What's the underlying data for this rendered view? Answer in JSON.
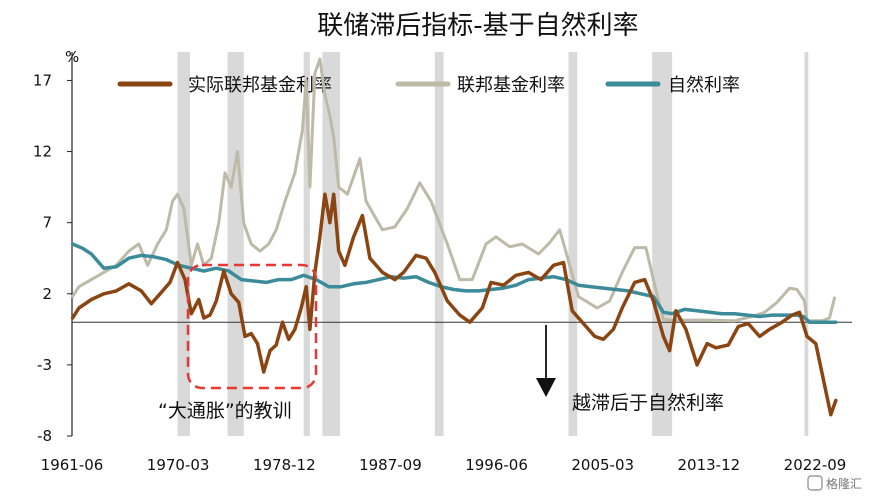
{
  "chart_data": {
    "type": "line",
    "title": "联储滞后指标-基于自然利率",
    "y_unit": "%",
    "ylim": [
      -8,
      19
    ],
    "yticks": [
      -8,
      -3,
      2,
      7,
      12,
      17
    ],
    "x_tick_labels": [
      "1961-06",
      "1970-03",
      "1978-12",
      "1987-09",
      "1996-06",
      "2005-03",
      "2013-12",
      "2022-09"
    ],
    "xlim": [
      1961.45,
      2023.9
    ],
    "recessions": [
      [
        1969.9,
        1970.9
      ],
      [
        1973.9,
        1975.2
      ],
      [
        1980.0,
        1980.5
      ],
      [
        1981.5,
        1982.9
      ],
      [
        1990.5,
        1991.2
      ],
      [
        2001.2,
        2001.9
      ],
      [
        2007.9,
        2009.5
      ],
      [
        2020.1,
        2020.4
      ]
    ],
    "legend_position": "top",
    "grid": false,
    "colors": {
      "real": "#8B4513",
      "ffr": "#BDBAA8",
      "natural": "#3B8B9A",
      "recession": "#D9D9D9",
      "box": "#E53935"
    },
    "series": [
      {
        "name": "实际联邦基金利率",
        "key": "real",
        "points": [
          [
            1961.5,
            0.3
          ],
          [
            1962.0,
            1.0
          ],
          [
            1963.0,
            1.6
          ],
          [
            1964.0,
            2.0
          ],
          [
            1965.0,
            2.2
          ],
          [
            1966.0,
            2.7
          ],
          [
            1967.0,
            2.2
          ],
          [
            1967.8,
            1.3
          ],
          [
            1968.5,
            2.0
          ],
          [
            1969.3,
            2.8
          ],
          [
            1969.9,
            4.2
          ],
          [
            1970.5,
            3.0
          ],
          [
            1971.0,
            0.6
          ],
          [
            1971.6,
            1.6
          ],
          [
            1972.0,
            0.3
          ],
          [
            1972.5,
            0.5
          ],
          [
            1973.0,
            1.5
          ],
          [
            1973.6,
            3.6
          ],
          [
            1974.2,
            2.0
          ],
          [
            1974.8,
            1.4
          ],
          [
            1975.3,
            -1.0
          ],
          [
            1975.8,
            -0.8
          ],
          [
            1976.3,
            -1.5
          ],
          [
            1976.8,
            -3.5
          ],
          [
            1977.3,
            -2.0
          ],
          [
            1977.8,
            -1.6
          ],
          [
            1978.3,
            0.0
          ],
          [
            1978.8,
            -1.2
          ],
          [
            1979.3,
            -0.5
          ],
          [
            1979.8,
            1.0
          ],
          [
            1980.2,
            2.5
          ],
          [
            1980.5,
            -0.5
          ],
          [
            1980.9,
            3.5
          ],
          [
            1981.3,
            6.0
          ],
          [
            1981.7,
            9.0
          ],
          [
            1982.1,
            7.0
          ],
          [
            1982.4,
            9.0
          ],
          [
            1982.8,
            5.0
          ],
          [
            1983.3,
            4.0
          ],
          [
            1984.0,
            6.0
          ],
          [
            1984.7,
            7.5
          ],
          [
            1985.3,
            4.5
          ],
          [
            1986.3,
            3.5
          ],
          [
            1987.3,
            3.0
          ],
          [
            1988.0,
            3.5
          ],
          [
            1989.0,
            4.7
          ],
          [
            1989.8,
            4.5
          ],
          [
            1990.5,
            3.5
          ],
          [
            1991.5,
            1.5
          ],
          [
            1992.5,
            0.5
          ],
          [
            1993.3,
            0.0
          ],
          [
            1994.3,
            1.0
          ],
          [
            1995.0,
            2.8
          ],
          [
            1996.0,
            2.6
          ],
          [
            1997.0,
            3.3
          ],
          [
            1998.0,
            3.5
          ],
          [
            1999.0,
            3.0
          ],
          [
            2000.0,
            4.0
          ],
          [
            2000.8,
            4.2
          ],
          [
            2001.5,
            0.8
          ],
          [
            2002.3,
            0.0
          ],
          [
            2003.3,
            -1.0
          ],
          [
            2004.0,
            -1.2
          ],
          [
            2004.8,
            -0.5
          ],
          [
            2005.5,
            1.0
          ],
          [
            2006.5,
            2.8
          ],
          [
            2007.3,
            3.0
          ],
          [
            2008.0,
            1.5
          ],
          [
            2008.8,
            -1.0
          ],
          [
            2009.3,
            -2.0
          ],
          [
            2009.8,
            0.8
          ],
          [
            2010.6,
            -0.5
          ],
          [
            2011.5,
            -3.0
          ],
          [
            2012.3,
            -1.5
          ],
          [
            2013.0,
            -1.8
          ],
          [
            2014.0,
            -1.6
          ],
          [
            2014.8,
            -0.3
          ],
          [
            2015.6,
            -0.1
          ],
          [
            2016.5,
            -1.0
          ],
          [
            2017.3,
            -0.5
          ],
          [
            2018.3,
            0.0
          ],
          [
            2019.1,
            0.5
          ],
          [
            2019.7,
            0.7
          ],
          [
            2020.3,
            -1.0
          ],
          [
            2021.0,
            -1.5
          ],
          [
            2021.6,
            -4.0
          ],
          [
            2022.2,
            -6.5
          ],
          [
            2022.6,
            -5.5
          ]
        ]
      },
      {
        "name": "联邦基金利率",
        "key": "ffr",
        "points": [
          [
            1961.5,
            1.8
          ],
          [
            1962.0,
            2.5
          ],
          [
            1963.0,
            3.0
          ],
          [
            1964.0,
            3.5
          ],
          [
            1965.0,
            4.0
          ],
          [
            1966.0,
            5.0
          ],
          [
            1966.8,
            5.5
          ],
          [
            1967.5,
            4.0
          ],
          [
            1968.3,
            5.5
          ],
          [
            1969.0,
            6.5
          ],
          [
            1969.5,
            8.5
          ],
          [
            1969.9,
            9.0
          ],
          [
            1970.4,
            8.0
          ],
          [
            1971.0,
            4.0
          ],
          [
            1971.5,
            5.5
          ],
          [
            1972.0,
            4.0
          ],
          [
            1972.6,
            4.5
          ],
          [
            1973.2,
            7.0
          ],
          [
            1973.7,
            10.5
          ],
          [
            1974.2,
            9.5
          ],
          [
            1974.7,
            12.0
          ],
          [
            1975.2,
            7.0
          ],
          [
            1975.8,
            5.5
          ],
          [
            1976.5,
            5.0
          ],
          [
            1977.2,
            5.5
          ],
          [
            1977.8,
            6.5
          ],
          [
            1978.5,
            8.5
          ],
          [
            1979.3,
            10.5
          ],
          [
            1979.9,
            13.5
          ],
          [
            1980.2,
            17.0
          ],
          [
            1980.5,
            9.5
          ],
          [
            1980.9,
            17.5
          ],
          [
            1981.3,
            18.5
          ],
          [
            1981.7,
            16.0
          ],
          [
            1982.1,
            14.5
          ],
          [
            1982.4,
            13.0
          ],
          [
            1982.8,
            9.5
          ],
          [
            1983.5,
            9.0
          ],
          [
            1984.5,
            11.5
          ],
          [
            1985.0,
            8.5
          ],
          [
            1986.3,
            6.5
          ],
          [
            1987.3,
            6.7
          ],
          [
            1988.3,
            8.0
          ],
          [
            1989.3,
            9.8
          ],
          [
            1990.2,
            8.5
          ],
          [
            1991.5,
            5.5
          ],
          [
            1992.5,
            3.0
          ],
          [
            1993.5,
            3.0
          ],
          [
            1994.6,
            5.5
          ],
          [
            1995.4,
            6.0
          ],
          [
            1996.5,
            5.3
          ],
          [
            1997.5,
            5.5
          ],
          [
            1998.8,
            4.8
          ],
          [
            1999.6,
            5.5
          ],
          [
            2000.5,
            6.5
          ],
          [
            2001.3,
            4.0
          ],
          [
            2002.0,
            1.8
          ],
          [
            2003.5,
            1.0
          ],
          [
            2004.5,
            1.5
          ],
          [
            2005.5,
            3.5
          ],
          [
            2006.5,
            5.25
          ],
          [
            2007.4,
            5.25
          ],
          [
            2008.0,
            3.0
          ],
          [
            2008.8,
            0.2
          ],
          [
            2009.5,
            0.15
          ],
          [
            2012.0,
            0.15
          ],
          [
            2014.5,
            0.1
          ],
          [
            2015.9,
            0.4
          ],
          [
            2016.9,
            0.7
          ],
          [
            2017.9,
            1.4
          ],
          [
            2018.9,
            2.4
          ],
          [
            2019.5,
            2.3
          ],
          [
            2020.1,
            1.5
          ],
          [
            2020.3,
            0.1
          ],
          [
            2021.5,
            0.1
          ],
          [
            2022.1,
            0.3
          ],
          [
            2022.5,
            1.7
          ]
        ]
      },
      {
        "name": "自然利率",
        "key": "natural",
        "points": [
          [
            1961.5,
            5.5
          ],
          [
            1962.3,
            5.2
          ],
          [
            1963.0,
            4.8
          ],
          [
            1964.0,
            3.8
          ],
          [
            1965.0,
            3.9
          ],
          [
            1966.0,
            4.5
          ],
          [
            1967.0,
            4.7
          ],
          [
            1968.0,
            4.6
          ],
          [
            1969.0,
            4.4
          ],
          [
            1970.0,
            4.0
          ],
          [
            1971.0,
            3.8
          ],
          [
            1972.0,
            3.6
          ],
          [
            1973.0,
            3.8
          ],
          [
            1974.0,
            3.6
          ],
          [
            1975.0,
            3.0
          ],
          [
            1976.0,
            2.9
          ],
          [
            1977.0,
            2.8
          ],
          [
            1978.0,
            3.0
          ],
          [
            1979.0,
            3.0
          ],
          [
            1980.0,
            3.3
          ],
          [
            1981.0,
            3.0
          ],
          [
            1982.0,
            2.5
          ],
          [
            1983.0,
            2.5
          ],
          [
            1984.0,
            2.7
          ],
          [
            1985.0,
            2.8
          ],
          [
            1986.0,
            3.0
          ],
          [
            1987.0,
            3.2
          ],
          [
            1988.0,
            3.1
          ],
          [
            1989.0,
            3.2
          ],
          [
            1990.0,
            2.8
          ],
          [
            1991.0,
            2.5
          ],
          [
            1992.0,
            2.3
          ],
          [
            1993.0,
            2.2
          ],
          [
            1994.0,
            2.2
          ],
          [
            1995.0,
            2.3
          ],
          [
            1996.0,
            2.4
          ],
          [
            1997.0,
            2.6
          ],
          [
            1998.0,
            3.0
          ],
          [
            1999.0,
            3.1
          ],
          [
            2000.0,
            3.2
          ],
          [
            2001.0,
            3.0
          ],
          [
            2002.0,
            2.6
          ],
          [
            2003.0,
            2.5
          ],
          [
            2004.0,
            2.4
          ],
          [
            2005.0,
            2.3
          ],
          [
            2006.0,
            2.2
          ],
          [
            2007.0,
            2.0
          ],
          [
            2008.0,
            1.8
          ],
          [
            2008.8,
            0.7
          ],
          [
            2009.5,
            0.6
          ],
          [
            2010.5,
            0.9
          ],
          [
            2011.5,
            0.8
          ],
          [
            2012.5,
            0.7
          ],
          [
            2013.5,
            0.6
          ],
          [
            2014.5,
            0.6
          ],
          [
            2015.5,
            0.5
          ],
          [
            2016.5,
            0.4
          ],
          [
            2017.5,
            0.5
          ],
          [
            2018.5,
            0.5
          ],
          [
            2019.5,
            0.5
          ],
          [
            2020.0,
            0.4
          ],
          [
            2020.5,
            0.0
          ],
          [
            2021.5,
            0.0
          ],
          [
            2022.6,
            0.0
          ]
        ]
      }
    ]
  },
  "annotations": {
    "great_inflation": "“大通胀”的教训",
    "lag_note": "越滞后于自然利率"
  },
  "watermark": "格隆汇"
}
